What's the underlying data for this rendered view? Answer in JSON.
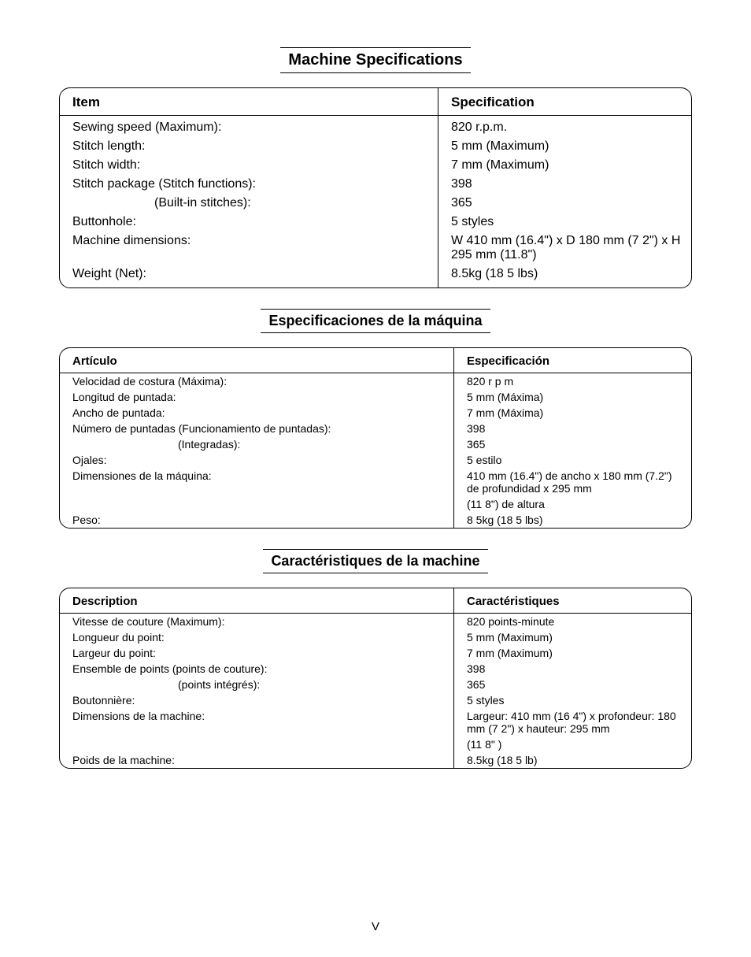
{
  "page_number": "V",
  "sections": [
    {
      "title": "Machine Specifications",
      "header_left": "Item",
      "header_right": "Specification",
      "size": "large",
      "rows": [
        {
          "item": "Sewing speed (Maximum):",
          "spec": "820 r.p.m.",
          "sub": false
        },
        {
          "item": "Stitch length:",
          "spec": "5 mm (Maximum)",
          "sub": false
        },
        {
          "item": "Stitch width:",
          "spec": "7 mm (Maximum)",
          "sub": false
        },
        {
          "item": "Stitch package (Stitch functions):",
          "spec": "398",
          "sub": false
        },
        {
          "item": "(Built-in stitches):",
          "spec": "365",
          "sub": true
        },
        {
          "item": "Buttonhole:",
          "spec": "5 styles",
          "sub": false
        },
        {
          "item": "Machine dimensions:",
          "spec": "W 410 mm (16.4\") x D 180 mm (7 2\") x H 295 mm (11.8\")",
          "sub": false
        },
        {
          "item": "Weight (Net):",
          "spec": "8.5kg (18 5 lbs)",
          "sub": false
        }
      ]
    },
    {
      "title": "Especificaciones de la máquina",
      "header_left": "Artículo",
      "header_right": "Especificación",
      "size": "small",
      "rows": [
        {
          "item": "Velocidad de costura (Máxima):",
          "spec": "820 r p m",
          "sub": false
        },
        {
          "item": "Longitud de puntada:",
          "spec": "5 mm (Máxima)",
          "sub": false
        },
        {
          "item": "Ancho de puntada:",
          "spec": "7 mm (Máxima)",
          "sub": false
        },
        {
          "item": "Número de puntadas (Funcionamiento de puntadas):",
          "spec": "398",
          "sub": false
        },
        {
          "item": "(Integradas):",
          "spec": "365",
          "sub": true
        },
        {
          "item": "Ojales:",
          "spec": "5 estilo",
          "sub": false
        },
        {
          "item": "Dimensiones de la máquina:",
          "spec": "410 mm (16.4\") de ancho x 180 mm (7.2\") de profundidad x  295 mm",
          "sub": false
        },
        {
          "item": "",
          "spec": "(11 8\") de altura",
          "sub": false
        },
        {
          "item": "Peso:",
          "spec": "8 5kg (18 5 lbs)",
          "sub": false
        }
      ]
    },
    {
      "title": "Caractéristiques de la machine",
      "header_left": "Description",
      "header_right": "Caractéristiques",
      "size": "small",
      "rows": [
        {
          "item": "Vitesse de couture (Maximum):",
          "spec": "820 points-minute",
          "sub": false
        },
        {
          "item": "Longueur du point:",
          "spec": "5 mm (Maximum)",
          "sub": false
        },
        {
          "item": "Largeur du point:",
          "spec": "7 mm (Maximum)",
          "sub": false
        },
        {
          "item": "Ensemble de points (points de couture):",
          "spec": "398",
          "sub": false
        },
        {
          "item": "(points intégrés):",
          "spec": "365",
          "sub": true
        },
        {
          "item": "Boutonnière:",
          "spec": "5 styles",
          "sub": false
        },
        {
          "item": "Dimensions de la machine:",
          "spec": "Largeur: 410 mm (16 4\") x profondeur: 180 mm (7 2\") x hauteur: 295 mm",
          "sub": false
        },
        {
          "item": "",
          "spec": "(11 8\" )",
          "sub": false
        },
        {
          "item": "Poids de la machine:",
          "spec": "8.5kg (18 5 lb)",
          "sub": false
        }
      ]
    }
  ]
}
